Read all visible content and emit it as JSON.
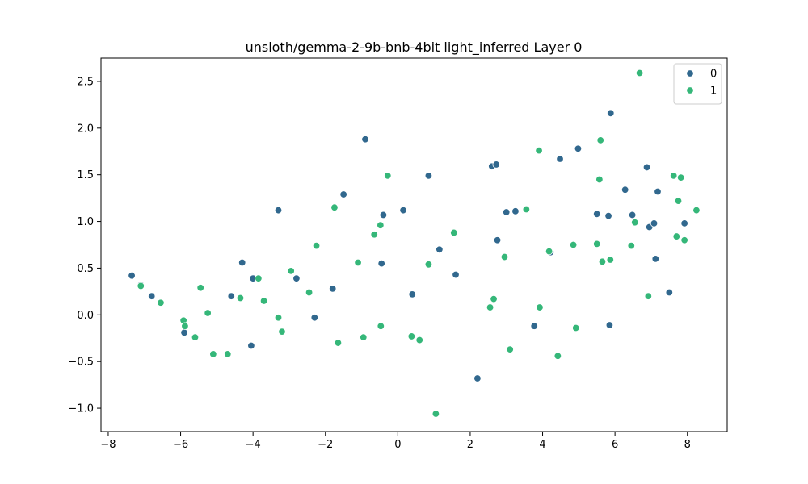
{
  "chart_data": {
    "type": "scatter",
    "title": "unsloth/gemma-2-9b-bnb-4bit light_inferred Layer 0",
    "xlabel": "",
    "ylabel": "",
    "xlim": [
      -8.2,
      9.1
    ],
    "ylim": [
      -1.25,
      2.75
    ],
    "xticks": [
      -8,
      -6,
      -4,
      -2,
      0,
      2,
      4,
      6,
      8
    ],
    "xtick_labels": [
      "−8",
      "−6",
      "−4",
      "−2",
      "0",
      "2",
      "4",
      "6",
      "8"
    ],
    "yticks": [
      -1.0,
      -0.5,
      0.0,
      0.5,
      1.0,
      1.5,
      2.0,
      2.5
    ],
    "ytick_labels": [
      "−1.0",
      "−0.5",
      "0.0",
      "0.5",
      "1.0",
      "1.5",
      "2.0",
      "2.5"
    ],
    "grid": false,
    "legend_position": "top-right",
    "series": [
      {
        "name": "0",
        "color": "#31688e",
        "points": [
          [
            -7.35,
            0.42
          ],
          [
            -7.1,
            0.32
          ],
          [
            -6.8,
            0.2
          ],
          [
            -5.9,
            -0.19
          ],
          [
            -4.6,
            0.2
          ],
          [
            -4.3,
            0.56
          ],
          [
            -4.05,
            -0.33
          ],
          [
            -4.0,
            0.39
          ],
          [
            -3.3,
            1.12
          ],
          [
            -2.8,
            0.39
          ],
          [
            -2.3,
            -0.03
          ],
          [
            -1.8,
            0.28
          ],
          [
            -1.5,
            1.29
          ],
          [
            -0.9,
            1.88
          ],
          [
            -0.45,
            0.55
          ],
          [
            -0.4,
            1.07
          ],
          [
            0.15,
            1.12
          ],
          [
            0.4,
            0.22
          ],
          [
            0.85,
            1.49
          ],
          [
            1.15,
            0.7
          ],
          [
            1.6,
            0.43
          ],
          [
            2.2,
            -0.68
          ],
          [
            2.6,
            1.59
          ],
          [
            2.72,
            1.61
          ],
          [
            2.75,
            0.8
          ],
          [
            3.0,
            1.1
          ],
          [
            3.25,
            1.11
          ],
          [
            3.77,
            -0.12
          ],
          [
            4.22,
            0.67
          ],
          [
            4.48,
            1.67
          ],
          [
            4.98,
            1.78
          ],
          [
            5.5,
            1.08
          ],
          [
            5.82,
            1.06
          ],
          [
            5.85,
            -0.11
          ],
          [
            5.88,
            2.16
          ],
          [
            6.28,
            1.34
          ],
          [
            6.48,
            1.07
          ],
          [
            6.88,
            1.58
          ],
          [
            6.95,
            0.94
          ],
          [
            7.08,
            0.98
          ],
          [
            7.12,
            0.6
          ],
          [
            7.18,
            1.32
          ],
          [
            7.5,
            0.24
          ],
          [
            7.92,
            0.98
          ]
        ]
      },
      {
        "name": "1",
        "color": "#35b779",
        "points": [
          [
            -7.1,
            0.31
          ],
          [
            -6.55,
            0.13
          ],
          [
            -5.92,
            -0.06
          ],
          [
            -5.88,
            -0.12
          ],
          [
            -5.6,
            -0.24
          ],
          [
            -5.45,
            0.29
          ],
          [
            -5.25,
            0.02
          ],
          [
            -5.1,
            -0.42
          ],
          [
            -4.7,
            -0.42
          ],
          [
            -4.35,
            0.18
          ],
          [
            -3.85,
            0.39
          ],
          [
            -3.7,
            0.15
          ],
          [
            -3.3,
            -0.03
          ],
          [
            -3.2,
            -0.18
          ],
          [
            -2.95,
            0.47
          ],
          [
            -2.45,
            0.24
          ],
          [
            -2.25,
            0.74
          ],
          [
            -1.75,
            1.15
          ],
          [
            -1.65,
            -0.3
          ],
          [
            -1.1,
            0.56
          ],
          [
            -0.95,
            -0.24
          ],
          [
            -0.65,
            0.86
          ],
          [
            -0.48,
            0.96
          ],
          [
            -0.47,
            -0.12
          ],
          [
            -0.28,
            1.49
          ],
          [
            0.38,
            -0.23
          ],
          [
            0.6,
            -0.27
          ],
          [
            0.85,
            0.54
          ],
          [
            1.05,
            -1.06
          ],
          [
            1.55,
            0.88
          ],
          [
            2.55,
            0.08
          ],
          [
            2.65,
            0.17
          ],
          [
            2.95,
            0.62
          ],
          [
            3.1,
            -0.37
          ],
          [
            3.55,
            1.13
          ],
          [
            3.9,
            1.76
          ],
          [
            3.92,
            0.08
          ],
          [
            4.18,
            0.68
          ],
          [
            4.42,
            -0.44
          ],
          [
            4.85,
            0.75
          ],
          [
            4.92,
            -0.14
          ],
          [
            5.5,
            0.76
          ],
          [
            5.57,
            1.45
          ],
          [
            5.6,
            1.87
          ],
          [
            5.65,
            0.57
          ],
          [
            5.87,
            0.59
          ],
          [
            6.45,
            0.74
          ],
          [
            6.55,
            0.99
          ],
          [
            6.68,
            2.59
          ],
          [
            6.92,
            0.2
          ],
          [
            7.62,
            1.49
          ],
          [
            7.7,
            0.84
          ],
          [
            7.75,
            1.22
          ],
          [
            7.82,
            1.47
          ],
          [
            7.92,
            0.8
          ],
          [
            8.25,
            1.12
          ]
        ]
      }
    ]
  }
}
